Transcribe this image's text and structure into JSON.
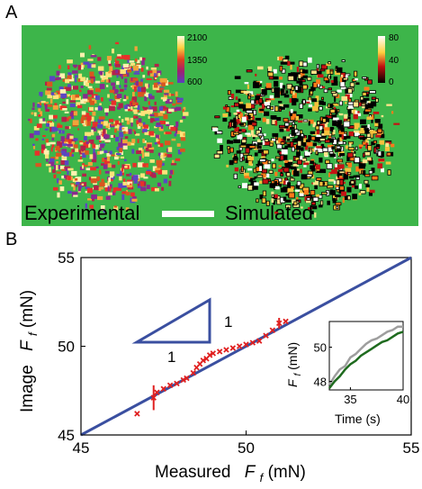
{
  "panel_a": {
    "label": "A",
    "experimental_label": "Experimental",
    "simulated_label": "Simulated",
    "colorbar_exp_ticks": [
      "2100",
      "1350",
      "600"
    ],
    "colorbar_sim_ticks": [
      "80",
      "40",
      "0"
    ],
    "background_color": "#3db54a"
  },
  "panel_b": {
    "label": "B",
    "slope_label_vertical": "1",
    "slope_label_horizontal": "1"
  },
  "chart_data": [
    {
      "type": "scatter",
      "xlabel_main": "Measured",
      "xlabel_sym": "F",
      "xlabel_sub": "f",
      "xlabel_unit": "(mN)",
      "ylabel_main": "Image",
      "ylabel_sym": "F",
      "ylabel_sub": "f",
      "ylabel_unit": "(mN)",
      "xlim": [
        45,
        55
      ],
      "ylim": [
        45,
        55
      ],
      "xticks": [
        "45",
        "50",
        "55"
      ],
      "yticks": [
        "45",
        "50",
        "55"
      ],
      "line_color": "#3a4fa0",
      "marker_color": "#e02020",
      "identity_line": [
        [
          45,
          45
        ],
        [
          55,
          55
        ]
      ],
      "points": [
        [
          46.7,
          46.2
        ],
        [
          47.2,
          47.1
        ],
        [
          47.3,
          47.4
        ],
        [
          47.5,
          47.6
        ],
        [
          47.7,
          47.8
        ],
        [
          47.9,
          47.9
        ],
        [
          48.1,
          48.1
        ],
        [
          48.2,
          48.2
        ],
        [
          48.4,
          48.5
        ],
        [
          48.5,
          48.8
        ],
        [
          48.6,
          49.0
        ],
        [
          48.7,
          49.2
        ],
        [
          48.8,
          49.3
        ],
        [
          48.9,
          49.5
        ],
        [
          49.0,
          49.6
        ],
        [
          49.2,
          49.7
        ],
        [
          49.4,
          49.8
        ],
        [
          49.6,
          49.9
        ],
        [
          49.8,
          50.0
        ],
        [
          50.0,
          50.1
        ],
        [
          50.2,
          50.2
        ],
        [
          50.4,
          50.3
        ],
        [
          50.6,
          50.6
        ],
        [
          50.8,
          50.9
        ],
        [
          51.0,
          51.3
        ],
        [
          51.2,
          51.4
        ]
      ],
      "error_bars": [
        {
          "x": 47.2,
          "y": 47.1,
          "err": 0.7
        },
        {
          "x": 51.0,
          "y": 51.3,
          "err": 0.3
        }
      ]
    },
    {
      "type": "line",
      "xlabel": "Time (s)",
      "ylabel_sym": "F",
      "ylabel_sub": "f",
      "ylabel_unit": "(mN)",
      "xlim": [
        33,
        40
      ],
      "ylim": [
        47.5,
        51.5
      ],
      "xticks": [
        "35",
        "40"
      ],
      "yticks": [
        "48",
        "50"
      ],
      "series": [
        {
          "color": "#9e9e9e",
          "x": [
            33,
            33.5,
            34,
            34.5,
            35,
            35.5,
            36,
            36.5,
            37,
            37.5,
            38,
            38.5,
            39,
            39.5,
            40
          ],
          "values": [
            47.8,
            48.3,
            48.7,
            48.9,
            49.4,
            49.6,
            49.9,
            50.2,
            50.4,
            50.5,
            50.7,
            50.9,
            51.0,
            51.2,
            51.2
          ]
        },
        {
          "color": "#1f6b1f",
          "x": [
            33,
            33.5,
            34,
            34.5,
            35,
            35.5,
            36,
            36.5,
            37,
            37.5,
            38,
            38.5,
            39,
            39.5,
            40
          ],
          "values": [
            47.6,
            48.0,
            48.3,
            48.7,
            49.0,
            49.2,
            49.5,
            49.7,
            49.9,
            50.1,
            50.3,
            50.4,
            50.6,
            50.8,
            50.9
          ]
        }
      ]
    }
  ]
}
